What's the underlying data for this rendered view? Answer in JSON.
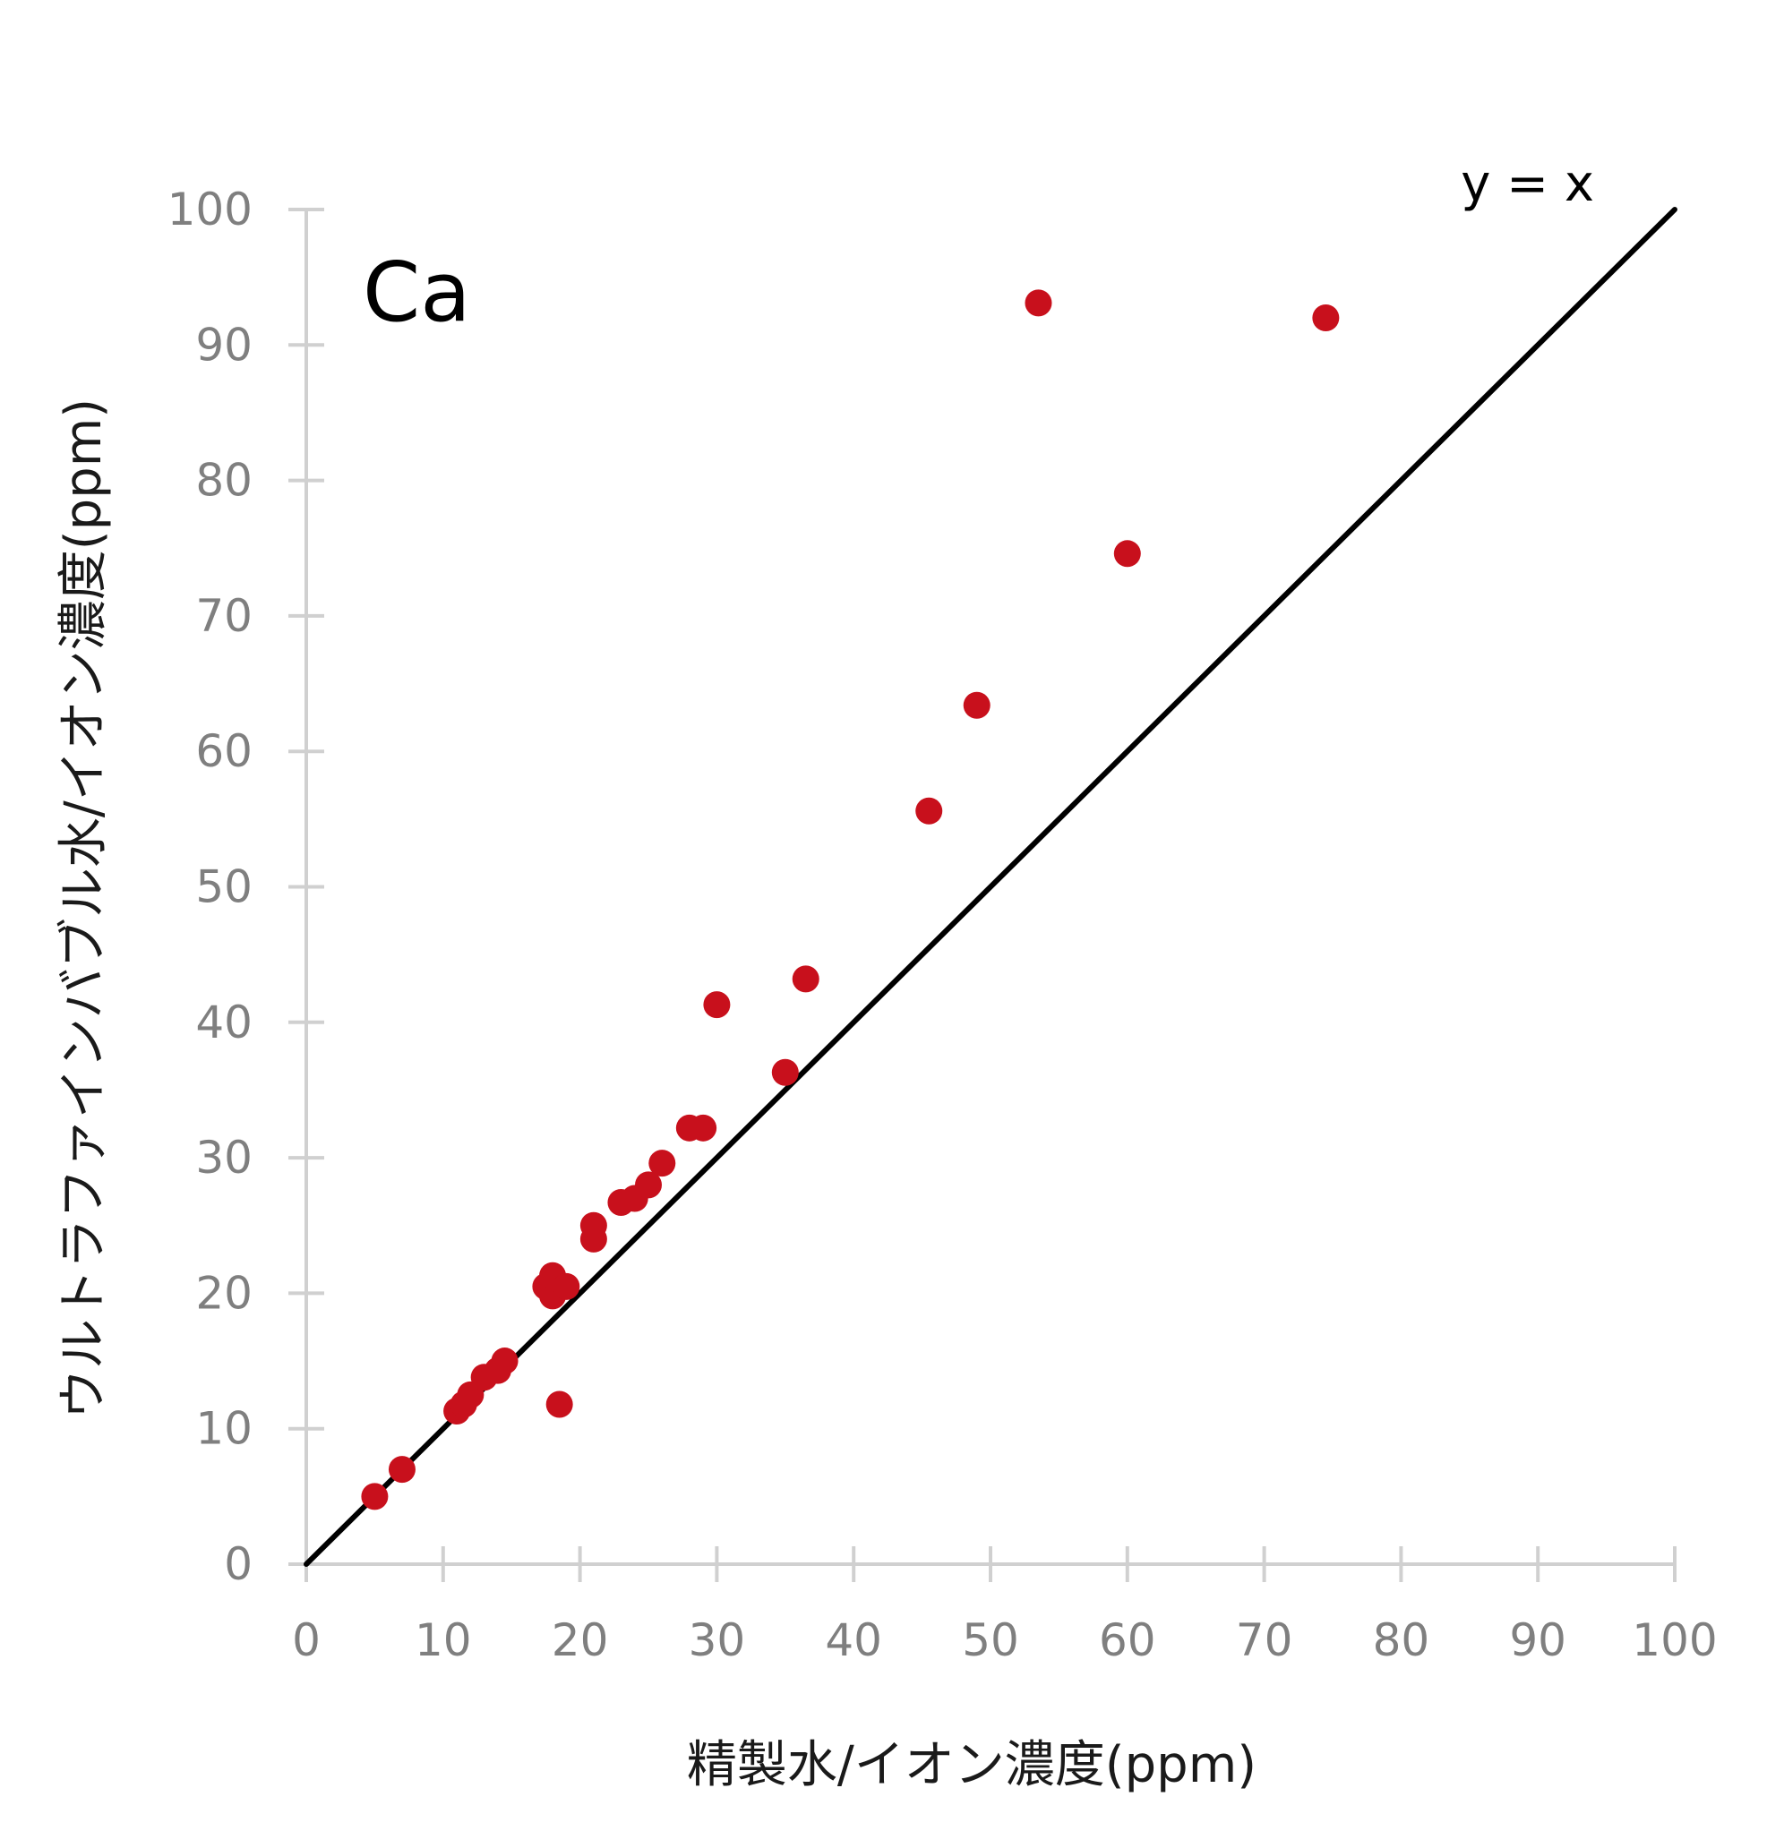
{
  "chart_data": {
    "type": "scatter",
    "title": "",
    "element_label": "Ca",
    "xlabel": "精製水/イオン濃度(ppm)",
    "ylabel": "ウルトラファインバブル水/イオン濃度(ppm)",
    "xlim": [
      0,
      100
    ],
    "ylim": [
      0,
      100
    ],
    "xticks": [
      "0",
      "10",
      "20",
      "30",
      "40",
      "50",
      "60",
      "70",
      "80",
      "90",
      "100"
    ],
    "yticks": [
      "0",
      "10",
      "20",
      "30",
      "40",
      "50",
      "60",
      "70",
      "80",
      "90",
      "100"
    ],
    "grid": false,
    "reference_line": {
      "label": "y = x",
      "x": [
        0,
        100
      ],
      "y": [
        0,
        100
      ],
      "color": "#000000"
    },
    "point_color": "#c8101c",
    "x": [
      5,
      7,
      11,
      11.5,
      12,
      13,
      14,
      14.5,
      17.5,
      18,
      18,
      19,
      18.5,
      21,
      21,
      23,
      24,
      25,
      26,
      28,
      29,
      30,
      35,
      36.5,
      45.5,
      49,
      53.5,
      60,
      74.5
    ],
    "y": [
      5,
      7,
      11.3,
      11.8,
      12.5,
      13.8,
      14.3,
      15,
      20.5,
      19.8,
      21.3,
      20.5,
      11.8,
      24,
      25,
      26.7,
      27,
      28,
      29.6,
      32.2,
      32.2,
      41.3,
      36.3,
      43.2,
      55.6,
      63.4,
      93.1,
      74.6,
      92
    ]
  }
}
